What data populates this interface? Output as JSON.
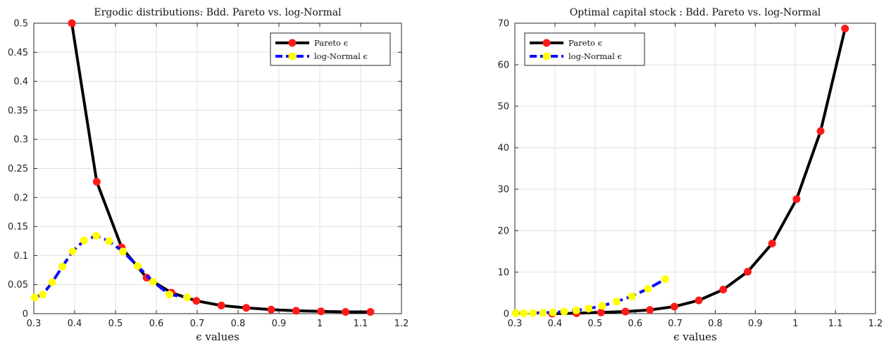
{
  "chart_data": [
    {
      "type": "line",
      "title": "Ergodic distributions: Bdd. Pareto vs. log-Normal",
      "xlabel": "ϵ values",
      "ylabel": "",
      "xlim": [
        0.3,
        1.2
      ],
      "ylim": [
        0,
        0.5
      ],
      "xticks": [
        "0.3",
        "0.4",
        "0.5",
        "0.6",
        "0.7",
        "0.8",
        "0.9",
        "1",
        "1.1",
        "1.2"
      ],
      "yticks": [
        "0",
        "0.05",
        "0.1",
        "0.15",
        "0.2",
        "0.25",
        "0.3",
        "0.35",
        "0.4",
        "0.45",
        "0.5"
      ],
      "grid": true,
      "legend_position": "top-right",
      "series": [
        {
          "name": "Pareto ϵ",
          "color": "#000000",
          "marker_color": "#ff1a1a",
          "x": [
            0.393,
            0.454,
            0.515,
            0.576,
            0.637,
            0.698,
            0.759,
            0.82,
            0.881,
            0.942,
            1.003,
            1.063,
            1.124
          ],
          "y": [
            0.5,
            0.227,
            0.114,
            0.062,
            0.036,
            0.022,
            0.014,
            0.01,
            0.007,
            0.005,
            0.004,
            0.003,
            0.003
          ]
        },
        {
          "name": "log-Normal ϵ",
          "color": "#0a0aff",
          "marker_color": "#ffff00",
          "x": [
            0.302,
            0.322,
            0.345,
            0.37,
            0.395,
            0.423,
            0.453,
            0.484,
            0.518,
            0.554,
            0.592,
            0.632,
            0.675
          ],
          "y": [
            0.028,
            0.033,
            0.054,
            0.081,
            0.107,
            0.126,
            0.134,
            0.125,
            0.107,
            0.082,
            0.055,
            0.033,
            0.028
          ]
        }
      ]
    },
    {
      "type": "line",
      "title": "Optimal capital stock : Bdd. Pareto vs. log-Normal",
      "xlabel": "ϵ values",
      "ylabel": "",
      "xlim": [
        0.3,
        1.2
      ],
      "ylim": [
        0,
        70
      ],
      "xticks": [
        "0.3",
        "0.4",
        "0.5",
        "0.6",
        "0.7",
        "0.8",
        "0.9",
        "1",
        "1.1",
        "1.2"
      ],
      "yticks": [
        "0",
        "10",
        "20",
        "30",
        "40",
        "50",
        "60",
        "70"
      ],
      "grid": true,
      "legend_position": "top-left",
      "series": [
        {
          "name": "Pareto ϵ",
          "color": "#000000",
          "marker_color": "#ff1a1a",
          "x": [
            0.393,
            0.454,
            0.515,
            0.576,
            0.637,
            0.698,
            0.759,
            0.82,
            0.881,
            0.942,
            1.003,
            1.063,
            1.124
          ],
          "y": [
            0.0,
            0.1,
            0.3,
            0.5,
            0.9,
            1.7,
            3.2,
            5.8,
            10.1,
            16.9,
            27.6,
            44.0,
            68.7
          ]
        },
        {
          "name": "log-Normal ϵ",
          "color": "#0a0aff",
          "marker_color": "#ffff00",
          "x": [
            0.302,
            0.322,
            0.345,
            0.37,
            0.395,
            0.423,
            0.453,
            0.484,
            0.518,
            0.554,
            0.592,
            0.632,
            0.675
          ],
          "y": [
            0.1,
            0.1,
            0.15,
            0.2,
            0.3,
            0.5,
            0.8,
            1.2,
            1.9,
            2.9,
            4.2,
            6.0,
            8.3
          ]
        }
      ]
    }
  ]
}
